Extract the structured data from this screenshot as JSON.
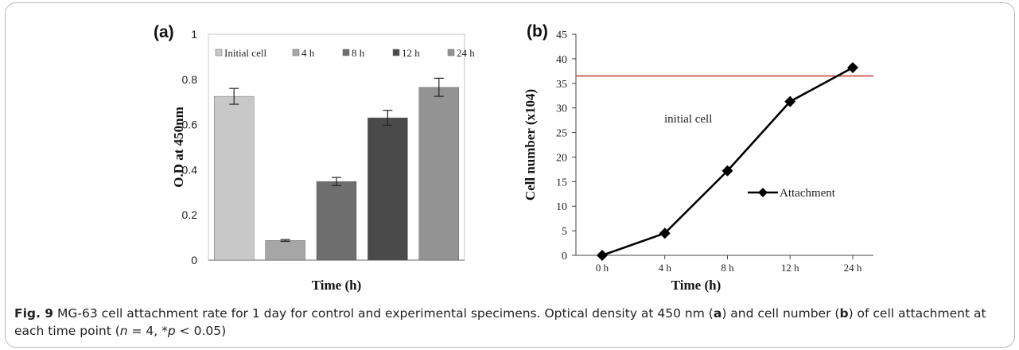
{
  "caption": {
    "fig_label": "Fig. 9",
    "text_1": "MG-63 cell attachment rate for 1 day for control and experimental specimens. Optical density at 450 nm (",
    "bold_a": "a",
    "text_2": ") and cell number (",
    "bold_b": "b",
    "text_3": ") of cell attachment at each time point (",
    "n_var": "n",
    "text_4": " = 4, *",
    "p_var": "p",
    "text_5": " < 0.05)"
  },
  "chart_data": [
    {
      "type": "bar",
      "panel_label": "(a)",
      "xlabel": "Time (h)",
      "ylabel": "O.D at 450nm",
      "ylim": [
        0,
        1
      ],
      "yticks": [
        "0",
        "0.2",
        "0.4",
        "0.6",
        "0.8",
        "1"
      ],
      "ytick_values": [
        0,
        0.2,
        0.4,
        0.6,
        0.8,
        1
      ],
      "legend_position": "top",
      "series": [
        {
          "name": "Initial cell",
          "value": 0.725,
          "error": 0.035,
          "color": "#c8c8c8"
        },
        {
          "name": "4 h",
          "value": 0.087,
          "error": 0.004,
          "color": "#a6a6a6"
        },
        {
          "name": "8 h",
          "value": 0.348,
          "error": 0.018,
          "color": "#6e6e6e"
        },
        {
          "name": "12 h",
          "value": 0.63,
          "error": 0.033,
          "color": "#4a4a4a"
        },
        {
          "name": "24 h",
          "value": 0.765,
          "error": 0.04,
          "color": "#939393"
        }
      ]
    },
    {
      "type": "line",
      "panel_label": "(b)",
      "xlabel": "Time (h)",
      "ylabel": "Cell number (x104)",
      "ylim": [
        0,
        45
      ],
      "yticks": [
        "0",
        "5",
        "10",
        "15",
        "20",
        "25",
        "30",
        "35",
        "40",
        "45"
      ],
      "ytick_values": [
        0,
        5,
        10,
        15,
        20,
        25,
        30,
        35,
        40,
        45
      ],
      "categories": [
        "0 h",
        "4 h",
        "8 h",
        "12 h",
        "24 h"
      ],
      "series": [
        {
          "name": "Attachment",
          "values": [
            0,
            4.5,
            17.2,
            31.3,
            38.2
          ],
          "color": "#000000"
        }
      ],
      "reference_line": {
        "label": "initial cell",
        "value": 36.5,
        "color": "#c0392b"
      },
      "legend_position": "right"
    }
  ]
}
